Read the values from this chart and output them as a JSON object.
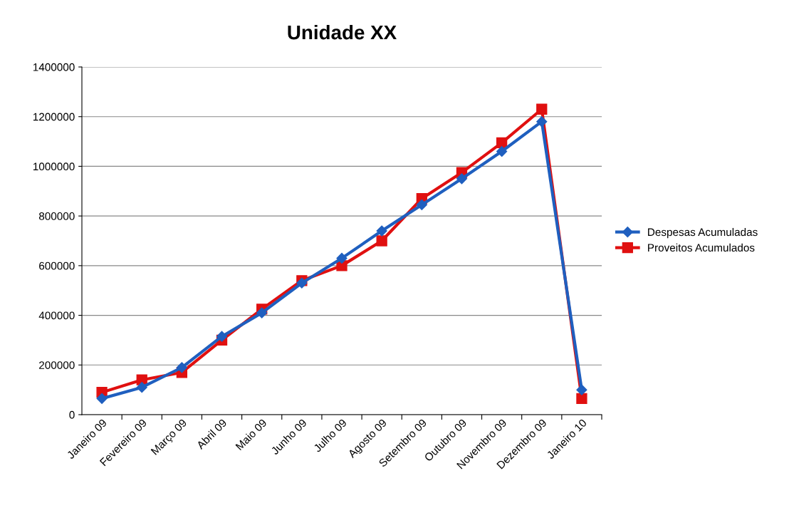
{
  "chart_data": {
    "type": "line",
    "title": "Unidade XX",
    "categories": [
      "Janeiro 09",
      "Fevereiro 09",
      "Março 09",
      "Abril 09",
      "Maio 09",
      "Junho 09",
      "Julho 09",
      "Agosto 09",
      "Setembro 09",
      "Outubro 09",
      "Novembro 09",
      "Dezembro 09",
      "Janeiro 10"
    ],
    "series": [
      {
        "name": "Despesas Acumuladas",
        "color": "#1f5fbf",
        "marker": "diamond",
        "values": [
          65000,
          110000,
          190000,
          315000,
          410000,
          530000,
          630000,
          740000,
          845000,
          950000,
          1060000,
          1180000,
          100000
        ]
      },
      {
        "name": "Proveitos Acumulados",
        "color": "#e01010",
        "marker": "square",
        "values": [
          90000,
          140000,
          170000,
          300000,
          425000,
          540000,
          600000,
          700000,
          870000,
          975000,
          1095000,
          1230000,
          65000
        ]
      }
    ],
    "ylim": [
      0,
      1400000
    ],
    "yticks": [
      0,
      200000,
      400000,
      600000,
      800000,
      1000000,
      1200000,
      1400000
    ],
    "grid": "y",
    "legend": "right",
    "line_style": "solid"
  }
}
